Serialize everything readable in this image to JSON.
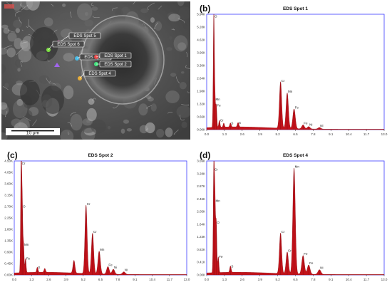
{
  "sem": {
    "scale_bar_label": "10 μm",
    "spots": [
      {
        "label": "EDS Spot 5"
      },
      {
        "label": "EDS Spot 6"
      },
      {
        "label": "EDS Spot 3"
      },
      {
        "label": "EDS Spot 1"
      },
      {
        "label": "EDS Spot 2"
      },
      {
        "label": "EDS Spot 4"
      }
    ]
  },
  "chart_data": [
    {
      "type": "line",
      "panel_letter": "(b)",
      "title": "EDS Spot 1",
      "xlim": [
        0,
        13
      ],
      "x_ticks": [
        "0.0",
        "1.3",
        "2.6",
        "3.9",
        "5.2",
        "6.5",
        "7.8",
        "9.1",
        "10.4",
        "11.7",
        "13.0"
      ],
      "ylim": [
        0,
        5.84
      ],
      "y_ticks": [
        "0.00K",
        "0.66K",
        "1.32K",
        "1.98K",
        "2.64K",
        "3.30K",
        "3.96K",
        "4.62K",
        "5.28K",
        "5.94K"
      ],
      "peaks": [
        {
          "x": 0.52,
          "y": 5.6,
          "label": "O"
        },
        {
          "x": 0.6,
          "y": 1.4,
          "label": "Mn"
        },
        {
          "x": 0.7,
          "y": 1.1,
          "label": "Fe"
        },
        {
          "x": 0.93,
          "y": 0.35,
          "label": "Cr"
        },
        {
          "x": 1.25,
          "y": 0.2,
          "label": ""
        },
        {
          "x": 1.74,
          "y": 0.2,
          "label": "S"
        },
        {
          "x": 2.3,
          "y": 0.22,
          "label": "S"
        },
        {
          "x": 5.41,
          "y": 2.35,
          "label": "Cr"
        },
        {
          "x": 5.9,
          "y": 1.8,
          "label": "Mn"
        },
        {
          "x": 6.4,
          "y": 1.0,
          "label": "Fe"
        },
        {
          "x": 7.06,
          "y": 0.2,
          "label": "Fe"
        },
        {
          "x": 7.47,
          "y": 0.12,
          "label": "Ni"
        },
        {
          "x": 8.26,
          "y": 0.08,
          "label": "Ni"
        }
      ]
    },
    {
      "type": "line",
      "panel_letter": "(c)",
      "title": "EDS Spot 2",
      "xlim": [
        0,
        13
      ],
      "x_ticks": [
        "0.0",
        "1.3",
        "2.6",
        "3.9",
        "5.2",
        "6.5",
        "7.8",
        "9.1",
        "10.4",
        "11.7",
        "13.0"
      ],
      "ylim": [
        0,
        4.5
      ],
      "y_ticks": [
        "0.00K",
        "0.45K",
        "0.90K",
        "1.35K",
        "1.80K",
        "2.25K",
        "2.70K",
        "3.15K",
        "3.60K",
        "4.05K",
        "4.50K"
      ],
      "peaks": [
        {
          "x": 0.52,
          "y": 4.3,
          "label": "Cr"
        },
        {
          "x": 0.6,
          "y": 2.6,
          "label": "O"
        },
        {
          "x": 0.7,
          "y": 1.1,
          "label": "Mn"
        },
        {
          "x": 0.85,
          "y": 0.55,
          "label": "Fe"
        },
        {
          "x": 1.74,
          "y": 0.2,
          "label": "S"
        },
        {
          "x": 2.3,
          "y": 0.15,
          "label": ""
        },
        {
          "x": 4.5,
          "y": 0.5,
          "label": ""
        },
        {
          "x": 5.41,
          "y": 2.7,
          "label": "Cr"
        },
        {
          "x": 5.9,
          "y": 1.6,
          "label": "Cr"
        },
        {
          "x": 6.4,
          "y": 0.9,
          "label": "Mn"
        },
        {
          "x": 7.06,
          "y": 0.3,
          "label": "Fe"
        },
        {
          "x": 7.47,
          "y": 0.2,
          "label": "Ni"
        },
        {
          "x": 8.26,
          "y": 0.1,
          "label": "Ni"
        }
      ]
    },
    {
      "type": "line",
      "panel_letter": "(d)",
      "title": "EDS Spot 4",
      "xlim": [
        0,
        13
      ],
      "x_ticks": [
        "0.0",
        "1.3",
        "2.6",
        "3.9",
        "5.2",
        "6.5",
        "7.8",
        "9.1",
        "10.4",
        "11.7",
        "13.0"
      ],
      "ylim": [
        0,
        3.66
      ],
      "y_ticks": [
        "0.00K",
        "0.41K",
        "0.82K",
        "1.23K",
        "1.64K",
        "2.05K",
        "2.46K",
        "2.87K",
        "3.28K",
        "3.69K"
      ],
      "peaks": [
        {
          "x": 0.52,
          "y": 3.3,
          "label": "Cr"
        },
        {
          "x": 0.6,
          "y": 2.3,
          "label": "Mn"
        },
        {
          "x": 0.7,
          "y": 1.6,
          "label": "O"
        },
        {
          "x": 0.85,
          "y": 0.5,
          "label": "Fe"
        },
        {
          "x": 1.74,
          "y": 0.2,
          "label": "S"
        },
        {
          "x": 5.41,
          "y": 1.3,
          "label": "Cr"
        },
        {
          "x": 5.9,
          "y": 0.7,
          "label": "Cr"
        },
        {
          "x": 6.4,
          "y": 3.4,
          "label": "Mn"
        },
        {
          "x": 7.06,
          "y": 0.6,
          "label": "Fe"
        },
        {
          "x": 7.47,
          "y": 0.3,
          "label": "Fe"
        },
        {
          "x": 8.26,
          "y": 0.15,
          "label": "Ni"
        }
      ]
    }
  ]
}
